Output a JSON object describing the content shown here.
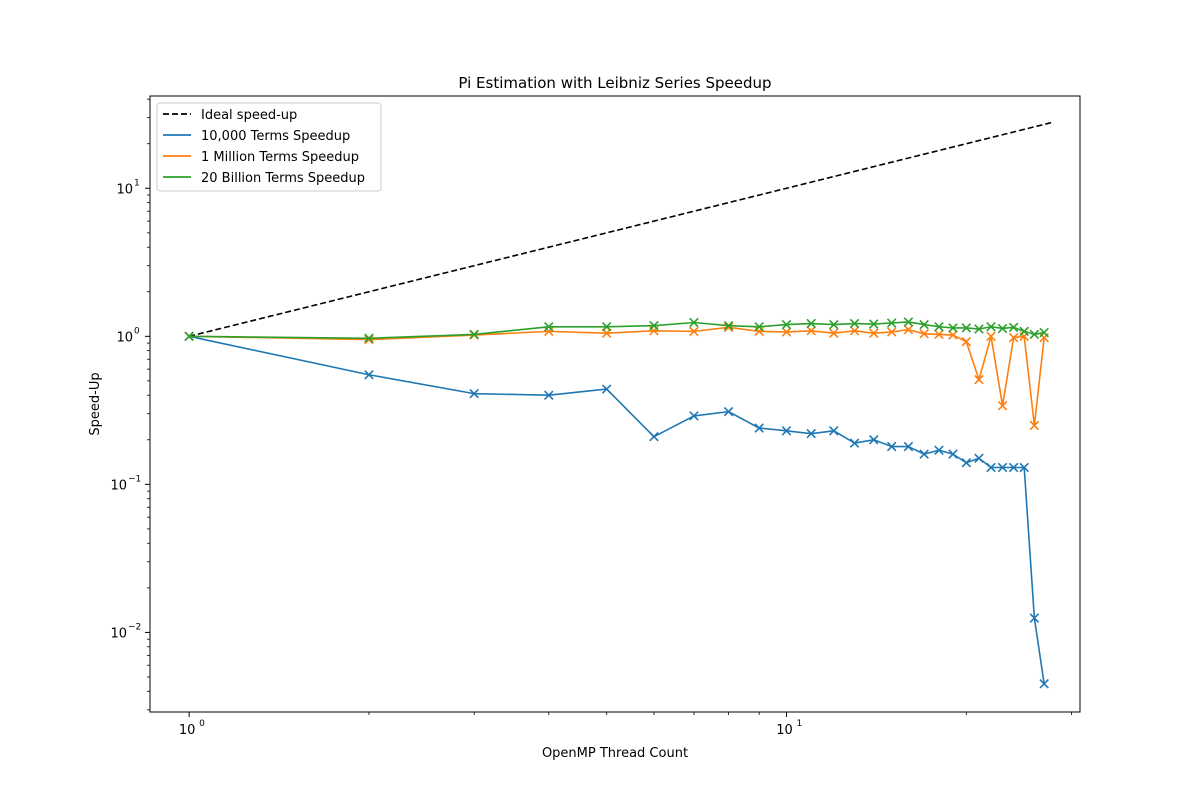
{
  "chart_data": {
    "type": "line",
    "title": "Pi Estimation with Leibniz Series Speedup",
    "xlabel": "OpenMP Thread Count",
    "ylabel": "Speed-Up",
    "x_scale": "log",
    "y_scale": "log",
    "xlim": [
      0.86,
      31.0
    ],
    "ylim": [
      0.0029,
      42.0
    ],
    "x_ticks": [
      {
        "value": 1,
        "base": "10",
        "exp": "0"
      },
      {
        "value": 10,
        "base": "10",
        "exp": "1"
      }
    ],
    "y_ticks": [
      {
        "value": 0.01,
        "base": "10",
        "exp": "−2"
      },
      {
        "value": 0.1,
        "base": "10",
        "exp": "−1"
      },
      {
        "value": 1,
        "base": "10",
        "exp": "0"
      },
      {
        "value": 10,
        "base": "10",
        "exp": "1"
      }
    ],
    "grid": false,
    "legend_position": "upper left",
    "series": [
      {
        "name": "Ideal speed-up",
        "color": "#000000",
        "dashed": true,
        "marker": "none",
        "x": [
          1,
          28
        ],
        "y": [
          1,
          28
        ]
      },
      {
        "name": "10,000 Terms Speedup",
        "color": "#1f77b4",
        "dashed": false,
        "marker": "x",
        "x": [
          1,
          2,
          3,
          4,
          5,
          6,
          7,
          8,
          9,
          10,
          11,
          12,
          13,
          14,
          15,
          16,
          17,
          18,
          19,
          20,
          21,
          22,
          23,
          24,
          25,
          26,
          27
        ],
        "y": [
          1.0,
          0.55,
          0.41,
          0.4,
          0.44,
          0.21,
          0.29,
          0.31,
          0.24,
          0.23,
          0.22,
          0.23,
          0.19,
          0.2,
          0.18,
          0.18,
          0.16,
          0.17,
          0.16,
          0.14,
          0.15,
          0.13,
          0.13,
          0.13,
          0.13,
          0.0125,
          0.0045
        ]
      },
      {
        "name": "1 Million Terms Speedup",
        "color": "#ff7f0e",
        "dashed": false,
        "marker": "x",
        "x": [
          1,
          2,
          3,
          4,
          5,
          6,
          7,
          8,
          9,
          10,
          11,
          12,
          13,
          14,
          15,
          16,
          17,
          18,
          19,
          20,
          21,
          22,
          23,
          24,
          25,
          26,
          27
        ],
        "y": [
          1.0,
          0.95,
          1.02,
          1.08,
          1.05,
          1.09,
          1.08,
          1.15,
          1.08,
          1.07,
          1.09,
          1.05,
          1.09,
          1.05,
          1.07,
          1.11,
          1.04,
          1.03,
          1.02,
          0.92,
          0.51,
          1.0,
          0.34,
          0.98,
          1.0,
          0.25,
          0.98
        ]
      },
      {
        "name": "20 Billion Terms Speedup",
        "color": "#2ca02c",
        "dashed": false,
        "marker": "x",
        "x": [
          1,
          2,
          3,
          4,
          5,
          6,
          7,
          8,
          9,
          10,
          11,
          12,
          13,
          14,
          15,
          16,
          17,
          18,
          19,
          20,
          21,
          22,
          23,
          24,
          25,
          26,
          27
        ],
        "y": [
          1.0,
          0.97,
          1.03,
          1.16,
          1.16,
          1.18,
          1.24,
          1.18,
          1.16,
          1.2,
          1.22,
          1.2,
          1.22,
          1.21,
          1.23,
          1.25,
          1.2,
          1.16,
          1.14,
          1.14,
          1.12,
          1.16,
          1.13,
          1.15,
          1.08,
          1.03,
          1.06
        ]
      }
    ]
  }
}
